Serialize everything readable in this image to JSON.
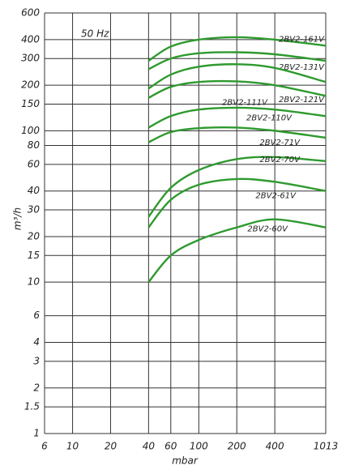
{
  "chart_data": {
    "type": "line",
    "annotation": "50 Hz",
    "x_label": "mbar",
    "y_label": "m³/h",
    "log_x": true,
    "log_y": true,
    "grid": true,
    "xlim": [
      6,
      1013
    ],
    "xticks": [
      6,
      10,
      20,
      40,
      60,
      100,
      200,
      400,
      1013
    ],
    "ylim": [
      1,
      600
    ],
    "yticks": [
      1,
      1.5,
      2,
      3,
      4,
      6,
      10,
      15,
      20,
      30,
      40,
      60,
      80,
      100,
      150,
      200,
      300,
      400,
      600
    ],
    "x": [
      40,
      60,
      100,
      200,
      400,
      1013
    ],
    "series": [
      {
        "name": "2BV2-161V",
        "color": "#2e9a2e",
        "values": [
          290,
          360,
          400,
          415,
          400,
          365
        ]
      },
      {
        "name": "2BV2-131V",
        "color": "#2e9a2e",
        "values": [
          255,
          300,
          325,
          330,
          320,
          290
        ]
      },
      {
        "name": "2BV2-121V",
        "color": "#2e9a2e",
        "values": [
          190,
          235,
          265,
          275,
          260,
          210
        ]
      },
      {
        "name": "2BV2-111V",
        "color": "#2e9a2e",
        "values": [
          165,
          195,
          210,
          212,
          200,
          170
        ]
      },
      {
        "name": "2BV2-110V",
        "color": "#2e9a2e",
        "values": [
          105,
          125,
          138,
          142,
          138,
          125
        ]
      },
      {
        "name": "2BV2-71V",
        "color": "#2e9a2e",
        "values": [
          84,
          98,
          104,
          105,
          100,
          90
        ]
      },
      {
        "name": "2BV2-70V",
        "color": "#2e9a2e",
        "values": [
          27,
          42,
          55,
          65,
          67,
          63
        ]
      },
      {
        "name": "2BV2-61V",
        "color": "#2e9a2e",
        "values": [
          23,
          35,
          44,
          48,
          46,
          40
        ]
      },
      {
        "name": "2BV2-60V",
        "color": "#2e9a2e",
        "values": [
          10,
          15,
          19,
          23,
          26,
          23
        ]
      }
    ]
  }
}
